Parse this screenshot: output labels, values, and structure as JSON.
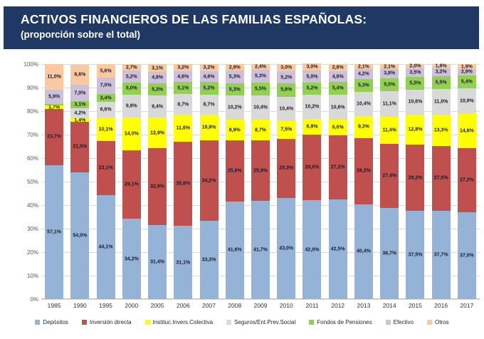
{
  "header": {
    "title": "ACTIVOS FINANCIEROS DE LAS FAMILIAS ESPAÑOLAS:",
    "subtitle": "(proporción sobre el total)",
    "bg_color": "#1F3864",
    "text_color": "#FFFFFF"
  },
  "chart_data": {
    "type": "bar",
    "stacked": true,
    "unit": "%",
    "title": "Activos financieros de las familias españolas (proporción sobre el total)",
    "ylim": [
      0,
      100
    ],
    "grid": true,
    "legend_position": "bottom",
    "y_ticks": [
      "0%",
      "10%",
      "20%",
      "30%",
      "40%",
      "50%",
      "60%",
      "70%",
      "80%",
      "90%",
      "100%"
    ],
    "categories": [
      "1985",
      "1990",
      "1995",
      "2000",
      "2005",
      "2006",
      "2007",
      "2008",
      "2009",
      "2010",
      "2011",
      "2012",
      "2013",
      "2014",
      "2015",
      "2016",
      "2017"
    ],
    "series": [
      {
        "name": "Depósitos",
        "color": "#95B3D7",
        "values": [
          57.1,
          54.0,
          44.1,
          34.2,
          31.4,
          31.1,
          33.3,
          41.6,
          41.7,
          43.0,
          42.0,
          42.5,
          40.4,
          38.7,
          37.5,
          37.7,
          37.0
        ],
        "labels": [
          "57,1%",
          "54,0%",
          "44,1%",
          "34,2%",
          "31,4%",
          "31,1%",
          "33,3%",
          "41,6%",
          "41,7%",
          "43,0%",
          "42,0%",
          "42,5%",
          "40,4%",
          "38,7%",
          "37,5%",
          "37,7%",
          "37,0%"
        ]
      },
      {
        "name": "Inversión directa",
        "color": "#C0504D",
        "values": [
          23.7,
          21.5,
          23.1,
          29.1,
          32.9,
          35.8,
          34.2,
          25.9,
          25.9,
          25.3,
          28.0,
          27.2,
          28.2,
          27.4,
          28.2,
          27.5,
          27.2
        ],
        "labels": [
          "23,7%",
          "21,5%",
          "23,1%",
          "29,1%",
          "32,9%",
          "35,8%",
          "34,2%",
          "25,9%",
          "25,9%",
          "25,3%",
          "28,0%",
          "27,2%",
          "28,2%",
          "27,4%",
          "28,2%",
          "27,5%",
          "27,2%"
        ]
      },
      {
        "name": "Instituc.Invers.Colectiva",
        "color": "#FFFF00",
        "values": [
          1.7,
          1.4,
          10.1,
          14.0,
          12.9,
          11.6,
          10.9,
          8.9,
          8.7,
          7.5,
          6.8,
          6.6,
          9.3,
          11.4,
          12.8,
          13.3,
          14.6
        ],
        "labels": [
          "1,7%",
          "1,4%",
          "10,1%",
          "14,0%",
          "12,9%",
          "11,6%",
          "10,9%",
          "8,9%",
          "8,7%",
          "7,5%",
          "6,8%",
          "6,6%",
          "9,3%",
          "11,4%",
          "12,8%",
          "13,3%",
          "14,6%"
        ]
      },
      {
        "name": "Seguros/Ent.Prev.Social",
        "color": "#D9D9D9",
        "values": [
          0,
          4.2,
          6.6,
          9.8,
          9.4,
          8.7,
          8.7,
          10.2,
          10.4,
          10.4,
          10.2,
          10.6,
          10.4,
          11.1,
          10.6,
          11.0,
          10.9
        ],
        "labels": [
          "",
          "4,2%",
          "6,6%",
          "9,8%",
          "9,4%",
          "8,7%",
          "8,7%",
          "10,2%",
          "10,4%",
          "10,4%",
          "10,2%",
          "10,6%",
          "10,4%",
          "11,1%",
          "10,6%",
          "11,0%",
          "10,9%"
        ]
      },
      {
        "name": "Fondos de Pensiones",
        "color": "#92D050",
        "values": [
          0.6,
          3.1,
          3.4,
          5.0,
          5.3,
          5.1,
          5.2,
          5.3,
          5.5,
          5.6,
          5.2,
          5.4,
          5.3,
          5.5,
          5.5,
          5.5,
          5.4
        ],
        "labels": [
          "",
          "3,1%",
          "3,4%",
          "5,0%",
          "5,3%",
          "5,1%",
          "5,2%",
          "5,3%",
          "5,5%",
          "5,6%",
          "5,2%",
          "5,4%",
          "5,3%",
          "5,5%",
          "5,5%",
          "5,5%",
          "5,4%"
        ]
      },
      {
        "name": "Efectivo",
        "color": "#CCC0DA",
        "values": [
          5.9,
          7.0,
          7.0,
          5.2,
          4.9,
          4.6,
          4.6,
          5.3,
          5.3,
          5.2,
          5.0,
          4.8,
          4.2,
          3.8,
          3.5,
          3.2,
          2.9
        ],
        "labels": [
          "5,9%",
          "7,0%",
          "7,0%",
          "5,2%",
          "4,9%",
          "4,6%",
          "4,6%",
          "5,3%",
          "5,3%",
          "5,2%",
          "5,0%",
          "4,8%",
          "4,2%",
          "3,8%",
          "3,5%",
          "3,2%",
          "2,9%"
        ]
      },
      {
        "name": "Otros",
        "color": "#FAC9A0",
        "values": [
          11.0,
          8.6,
          5.6,
          2.7,
          3.1,
          3.2,
          3.2,
          2.9,
          2.4,
          3.0,
          3.0,
          2.8,
          2.1,
          2.1,
          2.0,
          1.8,
          1.9
        ],
        "labels": [
          "11,0%",
          "8,6%",
          "5,6%",
          "2,7%",
          "3,1%",
          "3,2%",
          "3,2%",
          "2,9%",
          "2,4%",
          "3,0%",
          "3,0%",
          "2,8%",
          "2,1%",
          "2,1%",
          "2,0%",
          "1,8%",
          "1,9%"
        ]
      }
    ]
  }
}
